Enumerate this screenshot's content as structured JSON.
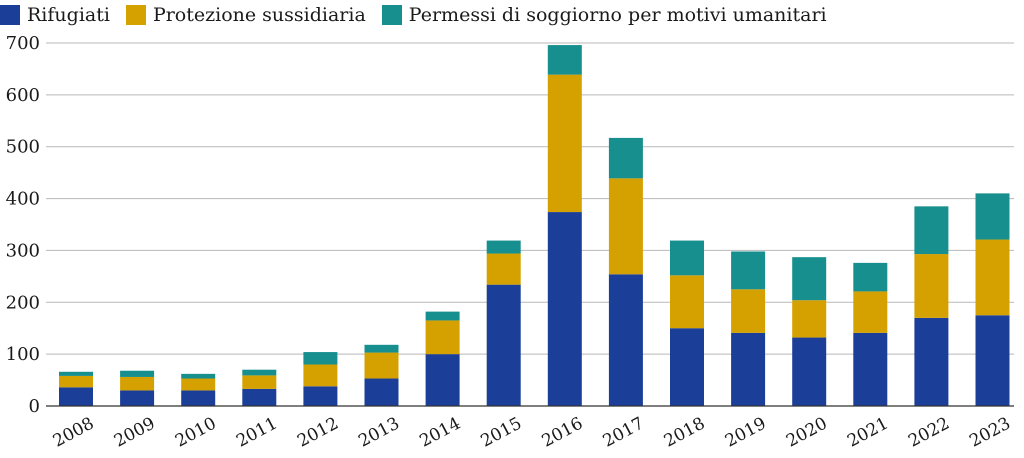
{
  "chart_data": {
    "type": "bar",
    "stacked": true,
    "categories": [
      "2008",
      "2009",
      "2010",
      "2011",
      "2012",
      "2013",
      "2014",
      "2015",
      "2016",
      "2017",
      "2018",
      "2019",
      "2020",
      "2021",
      "2022",
      "2023"
    ],
    "series": [
      {
        "name": "Rifugiati",
        "color": "#1b3f99",
        "values": [
          36,
          30,
          30,
          33,
          38,
          53,
          100,
          234,
          374,
          254,
          150,
          141,
          132,
          141,
          170,
          175
        ]
      },
      {
        "name": "Protezione sussidiaria",
        "color": "#d4a100",
        "values": [
          22,
          26,
          23,
          26,
          42,
          50,
          65,
          60,
          265,
          185,
          102,
          84,
          72,
          80,
          123,
          146
        ]
      },
      {
        "name": "Permessi di soggiorno per motivi umanitari",
        "color": "#178f8f",
        "values": [
          8,
          12,
          9,
          11,
          24,
          15,
          17,
          25,
          57,
          78,
          67,
          73,
          83,
          55,
          92,
          89
        ]
      }
    ],
    "ylim": [
      0,
      700
    ],
    "yticks": [
      0,
      100,
      200,
      300,
      400,
      500,
      600,
      700
    ],
    "grid": true,
    "legend_position": "top-left",
    "title": "",
    "xlabel": "",
    "ylabel": ""
  }
}
